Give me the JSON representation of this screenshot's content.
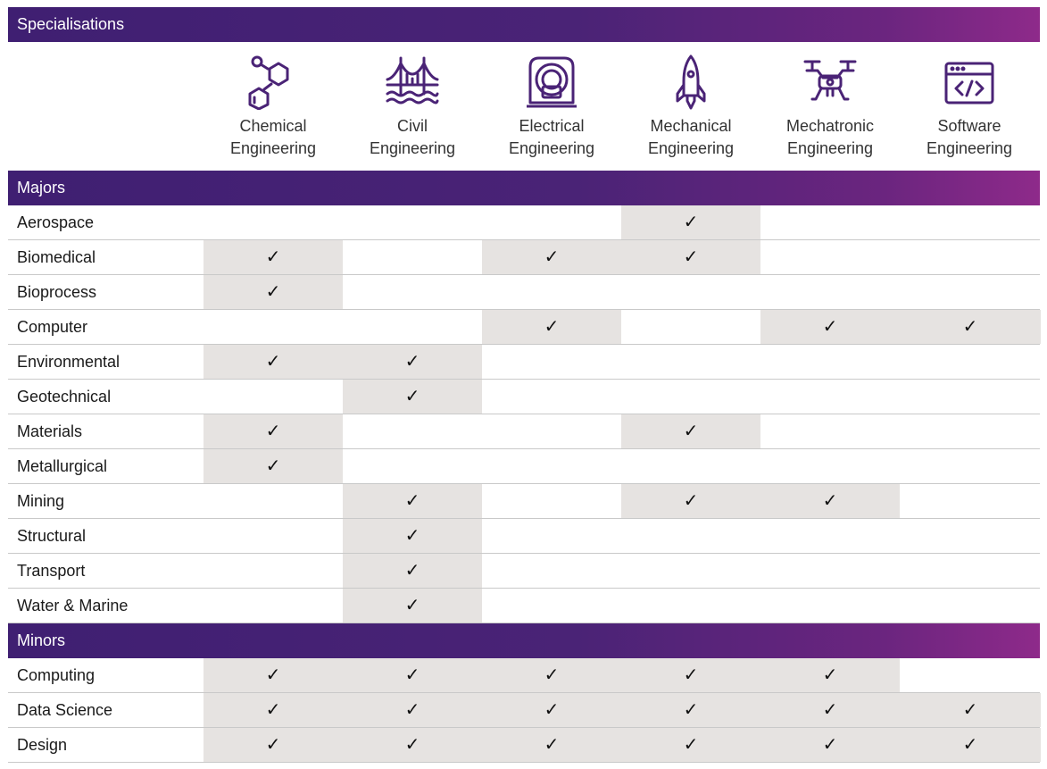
{
  "header_title": "Specialisations",
  "specialisations": [
    {
      "line1": "Chemical",
      "line2": "Engineering",
      "icon": "molecule-icon"
    },
    {
      "line1": "Civil",
      "line2": "Engineering",
      "icon": "bridge-icon"
    },
    {
      "line1": "Electrical",
      "line2": "Engineering",
      "icon": "mri-scanner-icon"
    },
    {
      "line1": "Mechanical",
      "line2": "Engineering",
      "icon": "rocket-icon"
    },
    {
      "line1": "Mechatronic",
      "line2": "Engineering",
      "icon": "drone-icon"
    },
    {
      "line1": "Software",
      "line2": "Engineering",
      "icon": "code-window-icon"
    }
  ],
  "colors": {
    "band_start": "#3f1f72",
    "band_end": "#8e2a8a",
    "icon": "#4a2376",
    "checked_cell": "#e6e3e1"
  },
  "check_mark": "✓",
  "sections": [
    {
      "title": "Majors",
      "rows": [
        {
          "label": "Aerospace",
          "checks": [
            false,
            false,
            false,
            true,
            false,
            false
          ]
        },
        {
          "label": "Biomedical",
          "checks": [
            true,
            false,
            true,
            true,
            false,
            false
          ]
        },
        {
          "label": "Bioprocess",
          "checks": [
            true,
            false,
            false,
            false,
            false,
            false
          ]
        },
        {
          "label": "Computer",
          "checks": [
            false,
            false,
            true,
            false,
            true,
            true
          ]
        },
        {
          "label": "Environmental",
          "checks": [
            true,
            true,
            false,
            false,
            false,
            false
          ]
        },
        {
          "label": "Geotechnical",
          "checks": [
            false,
            true,
            false,
            false,
            false,
            false
          ]
        },
        {
          "label": "Materials",
          "checks": [
            true,
            false,
            false,
            true,
            false,
            false
          ]
        },
        {
          "label": "Metallurgical",
          "checks": [
            true,
            false,
            false,
            false,
            false,
            false
          ]
        },
        {
          "label": "Mining",
          "checks": [
            false,
            true,
            false,
            true,
            true,
            false
          ]
        },
        {
          "label": "Structural",
          "checks": [
            false,
            true,
            false,
            false,
            false,
            false
          ]
        },
        {
          "label": "Transport",
          "checks": [
            false,
            true,
            false,
            false,
            false,
            false
          ]
        },
        {
          "label": "Water & Marine",
          "checks": [
            false,
            true,
            false,
            false,
            false,
            false
          ]
        }
      ]
    },
    {
      "title": "Minors",
      "rows": [
        {
          "label": "Computing",
          "checks": [
            true,
            true,
            true,
            true,
            true,
            false
          ]
        },
        {
          "label": "Data Science",
          "checks": [
            true,
            true,
            true,
            true,
            true,
            true
          ]
        },
        {
          "label": "Design",
          "checks": [
            true,
            true,
            true,
            true,
            true,
            true
          ]
        }
      ]
    }
  ]
}
